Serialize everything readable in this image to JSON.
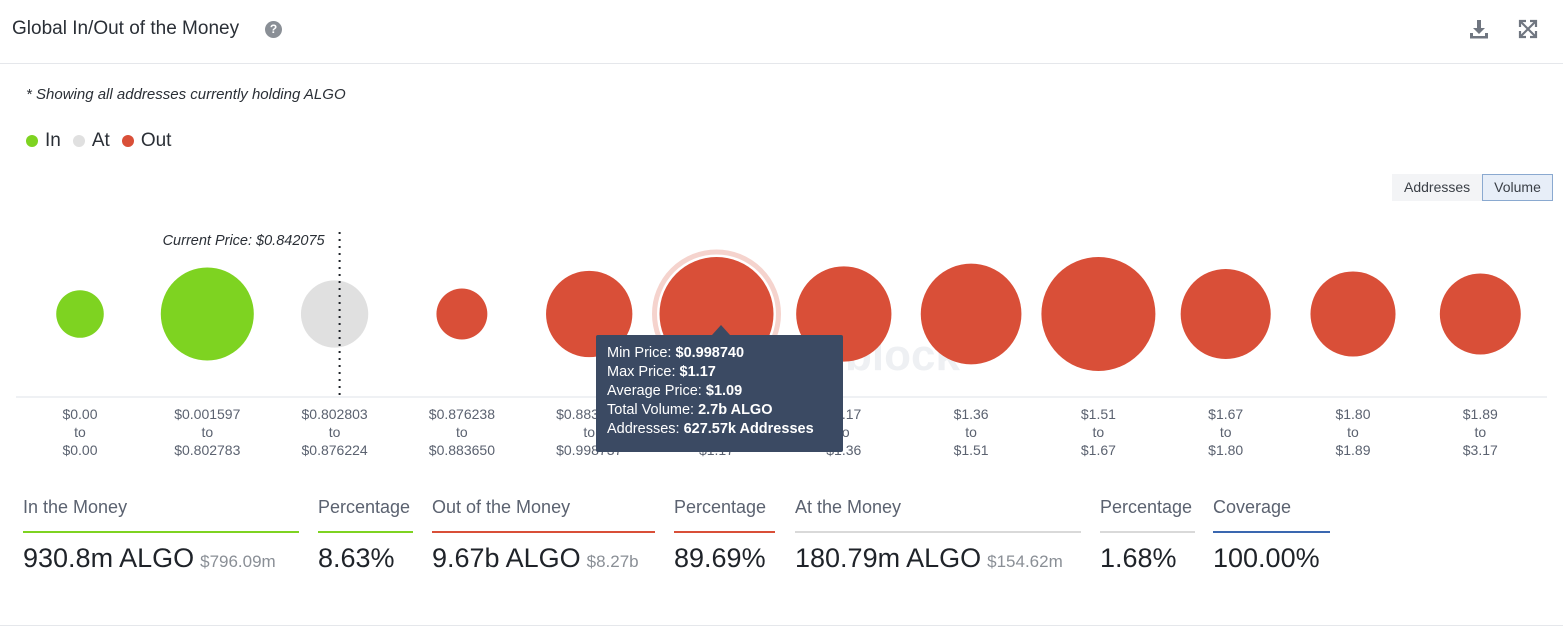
{
  "header": {
    "title": "Global In/Out of the Money",
    "help_icon": "question-circle-icon",
    "download_icon": "download-icon",
    "expand_icon": "fullscreen-icon"
  },
  "note": "* Showing all addresses currently holding ALGO",
  "legend": [
    {
      "label": "In",
      "color": "#7ed321"
    },
    {
      "label": "At",
      "color": "#e0e0e0"
    },
    {
      "label": "Out",
      "color": "#d94f38"
    }
  ],
  "toggle": {
    "addresses": "Addresses",
    "volume": "Volume",
    "selected": "Volume"
  },
  "watermark": "block",
  "chart_data": {
    "type": "scatter",
    "encoding": "bubble size = total volume per price range",
    "current_price_label": "Current Price: $0.842075",
    "current_price_bucket_index": 2,
    "buckets": [
      {
        "from": "$0.00",
        "to": "$0.00",
        "status": "in",
        "relative_volume": 0.06
      },
      {
        "from": "$0.001597",
        "to": "$0.802783",
        "status": "in",
        "relative_volume": 0.58
      },
      {
        "from": "$0.802803",
        "to": "$0.876224",
        "status": "at",
        "relative_volume": 0.22
      },
      {
        "from": "$0.876238",
        "to": "$0.883650",
        "status": "out",
        "relative_volume": 0.08
      },
      {
        "from": "$0.883650",
        "to": "$0.998737",
        "status": "out",
        "relative_volume": 0.47
      },
      {
        "from": "$0.998740",
        "to": "$1.17",
        "status": "out",
        "relative_volume": 1.0,
        "highlighted": true
      },
      {
        "from": "$1.17",
        "to": "$1.36",
        "status": "out",
        "relative_volume": 0.62
      },
      {
        "from": "$1.36",
        "to": "$1.51",
        "status": "out",
        "relative_volume": 0.72
      },
      {
        "from": "$1.51",
        "to": "$1.67",
        "status": "out",
        "relative_volume": 1.0
      },
      {
        "from": "$1.67",
        "to": "$1.80",
        "status": "out",
        "relative_volume": 0.53
      },
      {
        "from": "$1.80",
        "to": "$1.89",
        "status": "out",
        "relative_volume": 0.45
      },
      {
        "from": "$1.89",
        "to": "$3.17",
        "status": "out",
        "relative_volume": 0.39
      }
    ],
    "tick_joiner": "to",
    "tooltip": {
      "min_price_label": "Min Price:",
      "min_price": "$0.998740",
      "max_price_label": "Max Price:",
      "max_price": "$1.17",
      "avg_price_label": "Average Price:",
      "avg_price": "$1.09",
      "volume_label": "Total Volume:",
      "volume": "2.7b ALGO",
      "addresses_label": "Addresses:",
      "addresses": "627.57k Addresses"
    }
  },
  "stats": [
    {
      "label": "In the Money",
      "value": "930.8m ALGO",
      "sub": "$796.09m",
      "color": "#7ed321"
    },
    {
      "label": "Percentage",
      "value": "8.63%",
      "sub": "",
      "color": "#7ed321"
    },
    {
      "label": "Out of the Money",
      "value": "9.67b ALGO",
      "sub": "$8.27b",
      "color": "#d94f38"
    },
    {
      "label": "Percentage",
      "value": "89.69%",
      "sub": "",
      "color": "#d94f38"
    },
    {
      "label": "At the Money",
      "value": "180.79m ALGO",
      "sub": "$154.62m",
      "color": "#d9d9d9"
    },
    {
      "label": "Percentage",
      "value": "1.68%",
      "sub": "",
      "color": "#d9d9d9"
    },
    {
      "label": "Coverage",
      "value": "100.00%",
      "sub": "",
      "color": "#3a67b0"
    }
  ]
}
